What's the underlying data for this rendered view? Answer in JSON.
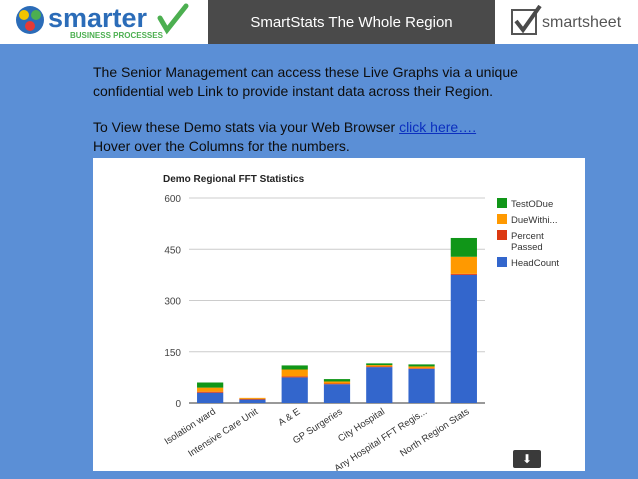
{
  "header": {
    "title": "SmartStats The Whole Region",
    "logo_left": {
      "word": "smarter",
      "tagline": "BUSINESS PROCESSES"
    },
    "logo_right": {
      "word": "smartsheet"
    }
  },
  "content": {
    "paragraph1": "The Senior Management can access these Live Graphs via a unique confidential web Link to provide instant data across their Region.",
    "paragraph2_prefix": "To View these Demo stats via your Web Browser ",
    "link_text": "click here….",
    "paragraph2_line2": "Hover over the Columns for the numbers."
  },
  "colors": {
    "background": "#5b8fd6",
    "headcount": "#3366cc",
    "percent_passed": "#dc3912",
    "duewithin": "#ff9900",
    "testodue": "#109618"
  },
  "chart_data": {
    "type": "bar",
    "stacked": true,
    "title": "Demo Regional FFT Statistics",
    "categories": [
      "Isolation ward",
      "Intensive Care Unit",
      "A & E",
      "GP Surgeries",
      "City Hospital",
      "Any Hospital FFT Regis...",
      "North Region Stats"
    ],
    "series": [
      {
        "name": "HeadCount",
        "color": "#3366cc",
        "values": [
          30,
          10,
          75,
          55,
          105,
          100,
          375
        ]
      },
      {
        "name": "Percent Passed",
        "color": "#dc3912",
        "values": [
          3,
          2,
          3,
          2,
          2,
          2,
          3
        ]
      },
      {
        "name": "DueWithi...",
        "color": "#ff9900",
        "values": [
          12,
          3,
          20,
          6,
          4,
          5,
          50
        ]
      },
      {
        "name": "TestODue",
        "color": "#109618",
        "values": [
          15,
          0,
          12,
          7,
          5,
          6,
          55
        ]
      }
    ],
    "legend_order": [
      "TestODue",
      "DueWithi...",
      "Percent Passed",
      "HeadCount"
    ],
    "yticks": [
      0,
      150,
      300,
      450,
      600
    ],
    "ylim": [
      0,
      600
    ],
    "legend_position": "right",
    "grid": true
  },
  "download_icon": "download-arrow-icon"
}
